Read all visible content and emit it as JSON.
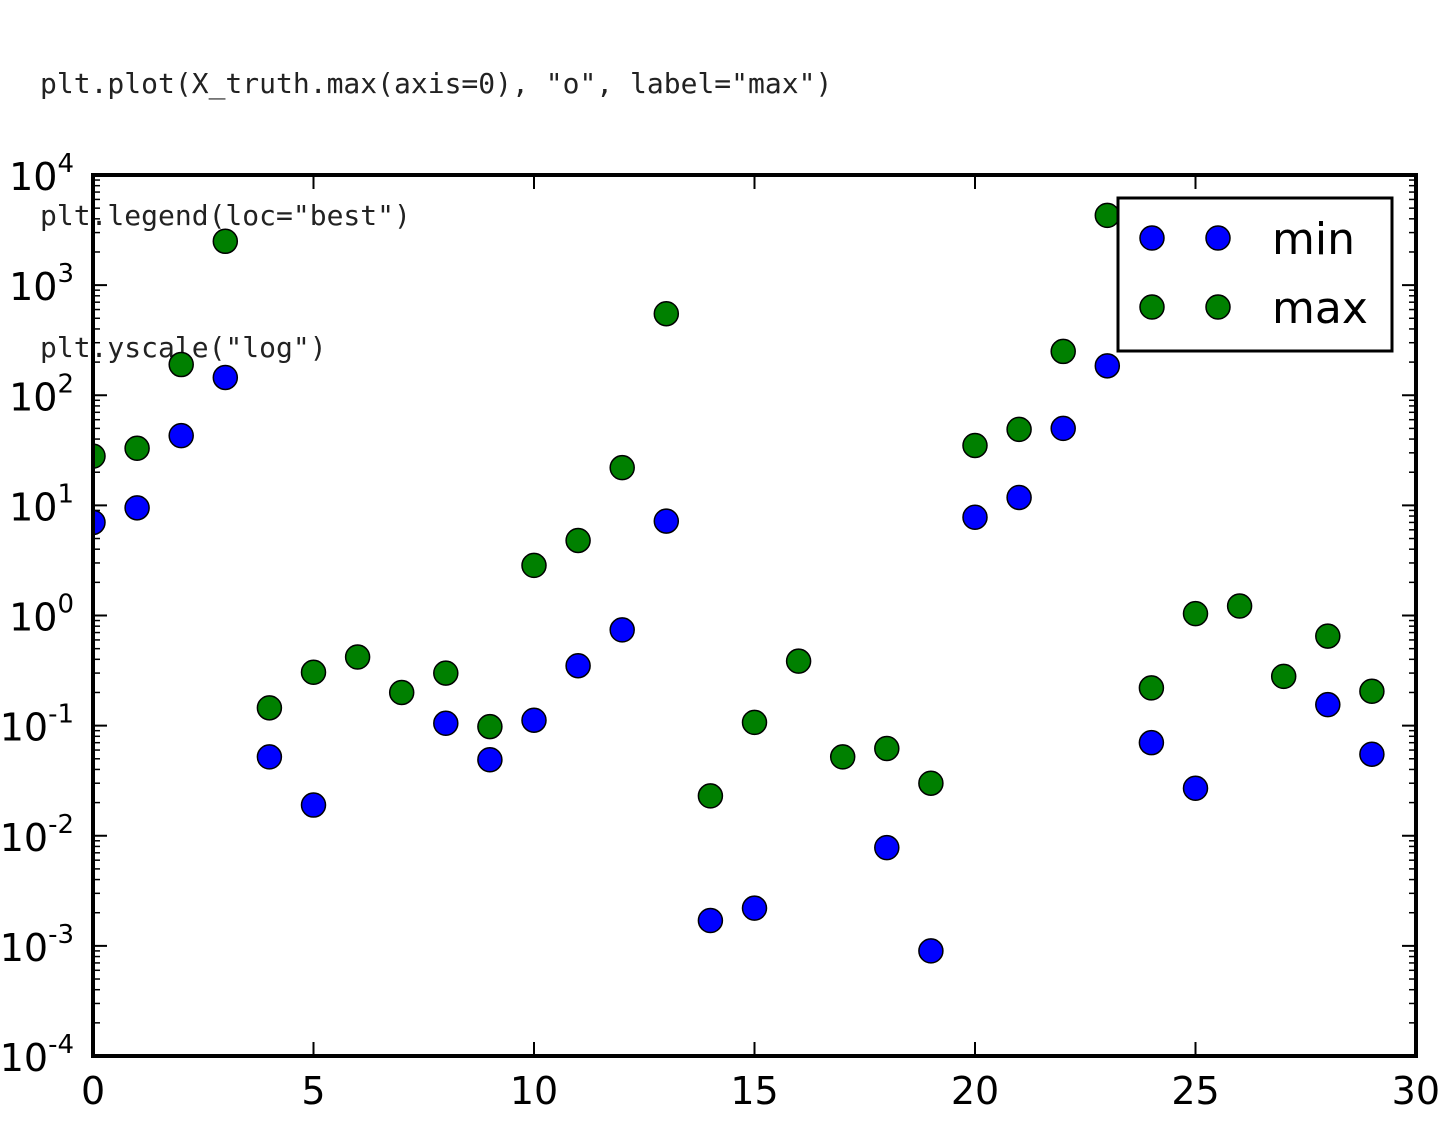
{
  "code_lines": [
    "plt.plot(X_truth.max(axis=0), \"o\", label=\"max\")",
    "plt.legend(loc=\"best\")",
    "plt.yscale(\"log\")"
  ],
  "chart_data": {
    "type": "scatter",
    "title": "",
    "xlabel": "",
    "ylabel": "",
    "xlim": [
      0,
      30
    ],
    "ylim": [
      0.0001,
      10000
    ],
    "yscale": "log",
    "grid": false,
    "legend": "top-right",
    "x_ticks": [
      "0",
      "5",
      "10",
      "15",
      "20",
      "25",
      "30"
    ],
    "y_ticks": [
      {
        "base": "10",
        "exp": "-4"
      },
      {
        "base": "10",
        "exp": "-3"
      },
      {
        "base": "10",
        "exp": "-2"
      },
      {
        "base": "10",
        "exp": "-1"
      },
      {
        "base": "10",
        "exp": "0"
      },
      {
        "base": "10",
        "exp": "1"
      },
      {
        "base": "10",
        "exp": "2"
      },
      {
        "base": "10",
        "exp": "3"
      },
      {
        "base": "10",
        "exp": "4"
      }
    ],
    "series": [
      {
        "name": "min",
        "color": "#0000ff",
        "x": [
          0,
          1,
          2,
          3,
          4,
          5,
          8,
          9,
          10,
          11,
          12,
          13,
          14,
          15,
          18,
          19,
          20,
          21,
          22,
          23,
          24,
          25,
          28,
          29
        ],
        "y": [
          7,
          9.5,
          43,
          145,
          0.052,
          0.019,
          0.105,
          0.049,
          0.112,
          0.35,
          0.74,
          7.2,
          0.0017,
          0.0022,
          0.0078,
          0.0009,
          7.8,
          11.8,
          50,
          185,
          0.07,
          0.027,
          0.155,
          0.055
        ]
      },
      {
        "name": "max",
        "color": "#008000",
        "x": [
          0,
          1,
          2,
          3,
          4,
          5,
          6,
          7,
          8,
          9,
          10,
          11,
          12,
          13,
          14,
          15,
          16,
          17,
          18,
          19,
          20,
          21,
          22,
          23,
          24,
          25,
          26,
          27,
          28,
          29
        ],
        "y": [
          28,
          33,
          190,
          2500,
          0.145,
          0.305,
          0.42,
          0.2,
          0.3,
          0.098,
          2.85,
          4.8,
          22,
          550,
          0.023,
          0.107,
          0.385,
          0.052,
          0.062,
          0.03,
          35,
          49,
          250,
          4300,
          0.22,
          1.04,
          1.22,
          0.28,
          0.65,
          0.205
        ]
      }
    ]
  }
}
